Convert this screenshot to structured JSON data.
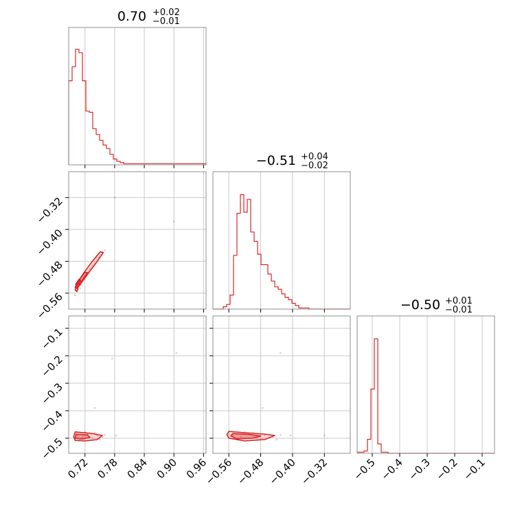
{
  "chart_data": {
    "type": "corner",
    "color": "#d62728",
    "grid": true,
    "params": [
      {
        "title": {
          "median": "0.70",
          "plus": "+0.02",
          "minus": "−0.01"
        },
        "range": [
          0.687,
          0.965
        ],
        "hist_ticks": [
          0.72,
          0.78,
          0.84,
          0.9,
          0.96
        ],
        "hist": [
          0.72,
          0.84,
          0.99,
          0.96,
          0.72,
          0.46,
          0.45,
          0.31,
          0.26,
          0.21,
          0.17,
          0.14,
          0.09,
          0.05,
          0.03,
          0.02,
          0.01,
          0.01,
          0.01,
          0.01,
          0.01,
          0.01,
          0.01,
          0.01,
          0.01,
          0.01,
          0.01,
          0.01,
          0.01,
          0.01,
          0.01,
          0.01,
          0.01,
          0.01,
          0.01,
          0.01,
          0.01,
          0.01,
          0.01,
          0.01
        ]
      },
      {
        "title": {
          "median": "−0.51",
          "plus": "+0.04",
          "minus": "−0.02"
        },
        "range": [
          -0.6,
          -0.255
        ],
        "hist_ticks": [
          -0.56,
          -0.48,
          -0.4,
          -0.32
        ],
        "hist": [
          0.0,
          0.0,
          0.0,
          0.02,
          0.04,
          0.12,
          0.46,
          0.82,
          0.98,
          0.83,
          0.94,
          0.66,
          0.58,
          0.47,
          0.38,
          0.38,
          0.3,
          0.24,
          0.19,
          0.17,
          0.13,
          0.1,
          0.08,
          0.05,
          0.03,
          0.01,
          0.01,
          0.01,
          0.0,
          0.0,
          0.0,
          0.0,
          0.0,
          0.0,
          0.0,
          0.0,
          0.0,
          0.0,
          0.0,
          0.0
        ]
      },
      {
        "title": {
          "median": "−0.50",
          "plus": "+0.01",
          "minus": "−0.01"
        },
        "range": [
          -0.555,
          -0.055
        ],
        "hist_ticks": [
          -0.5,
          -0.4,
          -0.3,
          -0.2,
          -0.1
        ],
        "hist": [
          0.01,
          0.01,
          0.02,
          0.12,
          0.55,
          0.98,
          0.08,
          0.01,
          0.01,
          0.0,
          0.0,
          0.0,
          0.0,
          0.0,
          0.0,
          0.0,
          0.0,
          0.0,
          0.0,
          0.0,
          0.0,
          0.0,
          0.0,
          0.0,
          0.0,
          0.0,
          0.0,
          0.0,
          0.0,
          0.0,
          0.0,
          0.0,
          0.0,
          0.0,
          0.0,
          0.0,
          0.0,
          0.0,
          0.0,
          0.0
        ]
      }
    ],
    "tick_labels": {
      "p0": [
        "0.72",
        "0.78",
        "0.84",
        "0.90",
        "0.96"
      ],
      "p1": [
        "−0.56",
        "−0.48",
        "−0.40",
        "−0.32"
      ],
      "p2": [
        "−0.5",
        "−0.4",
        "−0.3",
        "−0.2",
        "−0.1"
      ]
    },
    "panels_2d": [
      {
        "id": "p1-vs-p0",
        "xparam": 0,
        "yparam": 1,
        "contours": [
          [
            [
              0.706,
              -0.545
            ],
            [
              0.716,
              -0.528
            ],
            [
              0.73,
              -0.505
            ],
            [
              0.745,
              -0.48
            ],
            [
              0.757,
              -0.458
            ],
            [
              0.751,
              -0.456
            ],
            [
              0.735,
              -0.48
            ],
            [
              0.718,
              -0.508
            ],
            [
              0.704,
              -0.535
            ],
            [
              0.7,
              -0.552
            ],
            [
              0.704,
              -0.556
            ]
          ],
          [
            [
              0.703,
              -0.548
            ],
            [
              0.713,
              -0.53
            ],
            [
              0.725,
              -0.508
            ],
            [
              0.719,
              -0.508
            ],
            [
              0.708,
              -0.528
            ],
            [
              0.7,
              -0.545
            ]
          ],
          [
            [
              0.703,
              -0.542
            ],
            [
              0.711,
              -0.528
            ],
            [
              0.708,
              -0.525
            ],
            [
              0.701,
              -0.538
            ]
          ]
        ],
        "points": [
          [
            0.706,
            -0.55
          ],
          [
            0.712,
            -0.54
          ],
          [
            0.718,
            -0.525
          ],
          [
            0.725,
            -0.51
          ],
          [
            0.732,
            -0.498
          ],
          [
            0.74,
            -0.485
          ],
          [
            0.748,
            -0.472
          ],
          [
            0.755,
            -0.46
          ],
          [
            0.76,
            -0.452
          ],
          [
            0.71,
            -0.548
          ],
          [
            0.715,
            -0.53
          ],
          [
            0.722,
            -0.515
          ],
          [
            0.73,
            -0.5
          ],
          [
            0.738,
            -0.49
          ],
          [
            0.745,
            -0.478
          ],
          [
            0.752,
            -0.465
          ],
          [
            0.703,
            -0.555
          ],
          [
            0.708,
            -0.542
          ],
          [
            0.72,
            -0.52
          ],
          [
            0.735,
            -0.492
          ],
          [
            0.75,
            -0.468
          ],
          [
            0.78,
            -0.32
          ],
          [
            0.9,
            -0.38
          ],
          [
            0.7,
            -0.565
          ],
          [
            0.728,
            -0.505
          ],
          [
            0.742,
            -0.47
          ]
        ]
      },
      {
        "id": "p2-vs-p0",
        "xparam": 0,
        "yparam": 2,
        "contours": [
          [
            [
              0.7,
              -0.477
            ],
            [
              0.735,
              -0.483
            ],
            [
              0.755,
              -0.49
            ],
            [
              0.745,
              -0.505
            ],
            [
              0.72,
              -0.51
            ],
            [
              0.7,
              -0.508
            ],
            [
              0.697,
              -0.495
            ]
          ],
          [
            [
              0.702,
              -0.485
            ],
            [
              0.725,
              -0.488
            ],
            [
              0.73,
              -0.497
            ],
            [
              0.715,
              -0.503
            ],
            [
              0.7,
              -0.5
            ]
          ]
        ],
        "points": [
          [
            0.705,
            -0.49
          ],
          [
            0.715,
            -0.495
          ],
          [
            0.725,
            -0.485
          ],
          [
            0.735,
            -0.5
          ],
          [
            0.745,
            -0.49
          ],
          [
            0.755,
            -0.495
          ],
          [
            0.71,
            -0.505
          ],
          [
            0.72,
            -0.478
          ],
          [
            0.74,
            -0.48
          ],
          [
            0.7,
            -0.5
          ],
          [
            0.75,
            -0.505
          ],
          [
            0.76,
            -0.488
          ],
          [
            0.783,
            -0.49
          ],
          [
            0.74,
            -0.39
          ],
          [
            0.775,
            -0.21
          ],
          [
            0.905,
            -0.19
          ]
        ]
      },
      {
        "id": "p2-vs-p1",
        "xparam": 1,
        "yparam": 2,
        "contours": [
          [
            [
              -0.56,
              -0.475
            ],
            [
              -0.52,
              -0.48
            ],
            [
              -0.47,
              -0.485
            ],
            [
              -0.445,
              -0.49
            ],
            [
              -0.47,
              -0.505
            ],
            [
              -0.52,
              -0.51
            ],
            [
              -0.56,
              -0.5
            ],
            [
              -0.565,
              -0.487
            ]
          ],
          [
            [
              -0.55,
              -0.483
            ],
            [
              -0.51,
              -0.486
            ],
            [
              -0.48,
              -0.492
            ],
            [
              -0.5,
              -0.5
            ],
            [
              -0.54,
              -0.502
            ],
            [
              -0.555,
              -0.492
            ]
          ]
        ],
        "points": [
          [
            -0.55,
            -0.49
          ],
          [
            -0.53,
            -0.495
          ],
          [
            -0.51,
            -0.485
          ],
          [
            -0.49,
            -0.5
          ],
          [
            -0.47,
            -0.49
          ],
          [
            -0.45,
            -0.495
          ],
          [
            -0.54,
            -0.505
          ],
          [
            -0.52,
            -0.478
          ],
          [
            -0.5,
            -0.48
          ],
          [
            -0.44,
            -0.505
          ],
          [
            -0.43,
            -0.488
          ],
          [
            -0.405,
            -0.49
          ],
          [
            -0.475,
            -0.39
          ],
          [
            -0.43,
            -0.19
          ],
          [
            -0.32,
            -0.49
          ]
        ]
      }
    ]
  }
}
